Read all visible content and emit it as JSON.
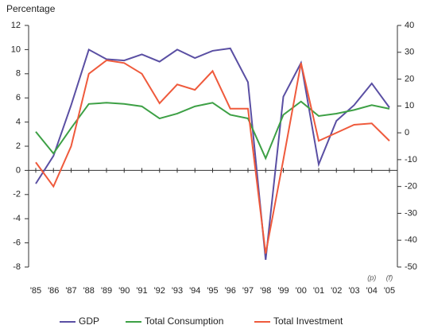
{
  "chart_data": {
    "type": "line",
    "y_label": "Percentage",
    "categories": [
      "'85",
      "'86",
      "'87",
      "'88",
      "'89",
      "'90",
      "'91",
      "'92",
      "'93",
      "'94",
      "'95",
      "'96",
      "'97",
      "'98",
      "'99",
      "'00",
      "'01",
      "'02",
      "'03",
      "'04",
      "'05"
    ],
    "annotations": [
      "(p)",
      "(f)"
    ],
    "ylim": [
      -8,
      12
    ],
    "yticks": [
      -8,
      -6,
      -4,
      -2,
      0,
      2,
      4,
      6,
      8,
      10,
      12
    ],
    "y2lim": [
      -50,
      40
    ],
    "y2ticks": [
      -50,
      -40,
      -30,
      -20,
      -10,
      0,
      10,
      20,
      30,
      40
    ],
    "legend": "bottom",
    "series": [
      {
        "name": "GDP",
        "color": "#5a4fa3",
        "values": [
          -1.1,
          1.2,
          5.4,
          10.0,
          9.2,
          9.1,
          9.6,
          9.0,
          10.0,
          9.3,
          9.9,
          10.1,
          7.3,
          -7.4,
          6.1,
          8.9,
          0.5,
          4.1,
          5.4,
          7.2,
          5.2
        ]
      },
      {
        "name": "Total Consumption",
        "color": "#3da045",
        "values": [
          3.2,
          1.4,
          3.5,
          5.5,
          5.6,
          5.5,
          5.3,
          4.3,
          4.7,
          5.3,
          5.6,
          4.6,
          4.3,
          1.0,
          4.6,
          5.7,
          4.5,
          4.7,
          5.0,
          5.4,
          5.1
        ]
      },
      {
        "name": "Total Investment",
        "color": "#ef5a3c",
        "axis": "y2",
        "values": [
          -11,
          -20,
          -5,
          22,
          27,
          26,
          22,
          11,
          18,
          16,
          23,
          9,
          9,
          -45,
          -10,
          26,
          -3,
          0,
          3,
          3.5,
          -3
        ]
      }
    ]
  }
}
